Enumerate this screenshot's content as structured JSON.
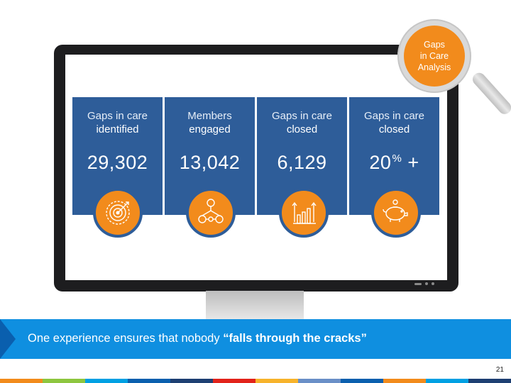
{
  "magnifier": {
    "line1": "Gaps",
    "line2": "in Care",
    "line3": "Analysis"
  },
  "cards": [
    {
      "label_line1": "Gaps in care",
      "label_line2": "identified",
      "value": "29,302",
      "icon": "target-icon"
    },
    {
      "label_line1": "Members",
      "label_line2": "engaged",
      "value": "13,042",
      "icon": "people-network-icon"
    },
    {
      "label_line1": "Gaps in care",
      "label_line2": "closed",
      "value": "6,129",
      "icon": "bar-chart-icon"
    },
    {
      "label_line1": "Gaps in care",
      "label_line2": "closed",
      "value": "20",
      "value_sup": "%",
      "value_suffix": "+",
      "icon": "piggy-bank-icon"
    }
  ],
  "banner": {
    "text_prefix": "One experience ensures that nobody ",
    "text_bold": "“falls through the cracks”"
  },
  "page_number": "21",
  "colors": {
    "card_blue": "#2e5d99",
    "accent_orange": "#f28b1c",
    "banner_blue": "#0f8fe0",
    "strip": [
      "#f28b1c",
      "#8dc63f",
      "#00a0e3",
      "#0a5fae",
      "#1d3f72",
      "#e2231a",
      "#f7b32b",
      "#6a8fc7",
      "#0a5fae",
      "#f28b1c",
      "#00a0e3",
      "#1d3f72"
    ]
  }
}
